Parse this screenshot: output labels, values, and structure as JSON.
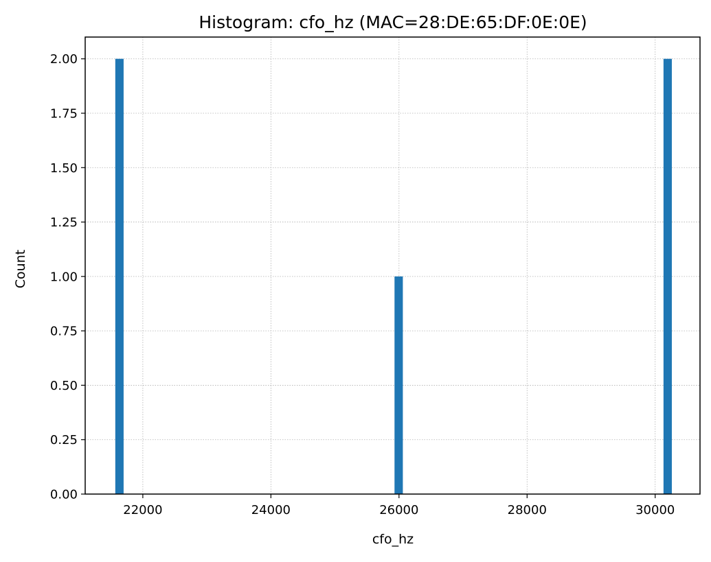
{
  "chart_data": {
    "type": "bar",
    "title": "Histogram: cfo_hz (MAC=28:DE:65:DF:0E:0E)",
    "xlabel": "cfo_hz",
    "ylabel": "Count",
    "xlim": [
      21100,
      30700
    ],
    "ylim": [
      0,
      2.1
    ],
    "xticks": [
      22000,
      24000,
      26000,
      28000,
      30000
    ],
    "yticks": [
      "0.00",
      "0.25",
      "0.50",
      "0.75",
      "1.00",
      "1.25",
      "1.50",
      "1.75",
      "2.00"
    ],
    "grid": true,
    "bins": [
      {
        "x0": 21570,
        "x1": 21700,
        "count": 2
      },
      {
        "x0": 25930,
        "x1": 26060,
        "count": 1
      },
      {
        "x0": 30130,
        "x1": 30260,
        "count": 2
      }
    ],
    "colors": {
      "bar": "#1f77b4",
      "grid": "#b0b0b0",
      "axis": "#000000"
    }
  }
}
